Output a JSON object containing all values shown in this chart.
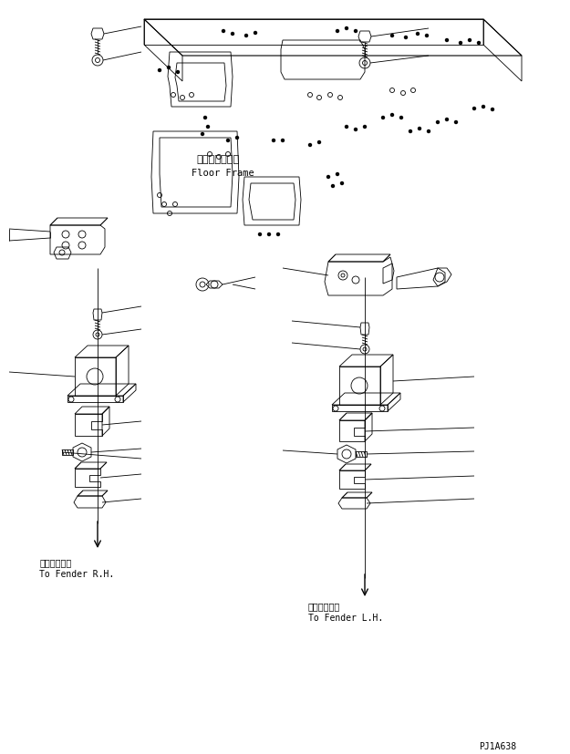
{
  "bg_color": "#ffffff",
  "line_color": "#000000",
  "fig_width": 6.25,
  "fig_height": 8.28,
  "dpi": 100,
  "label_floor_frame_jp": "フロアフレーム",
  "label_floor_frame_en": "Floor Frame",
  "label_rh_jp": "フェンダ右へ",
  "label_rh_en": "To Fender R.H.",
  "label_lh_jp": "フェンダ左へ",
  "label_lh_en": "To Fender L.H.",
  "code": "PJ1A638",
  "font_size_label": 7,
  "font_size_code": 7
}
